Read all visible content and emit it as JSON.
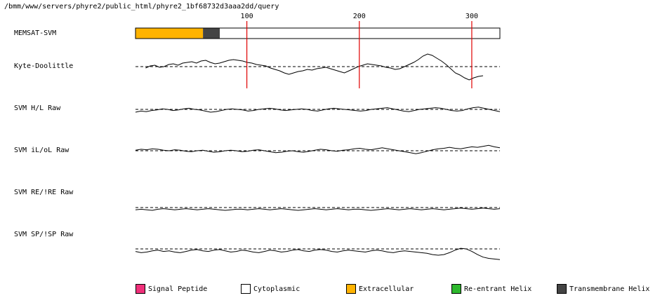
{
  "path_title": "/bmm/www/servers/phyre2/public_html/phyre2_1bf68732d3aaa2dd/query",
  "chart_data": {
    "type": "line",
    "sequence_length": 325,
    "ruler_ticks": [
      100,
      200,
      300
    ],
    "ruler_tick_labels": [
      "100",
      "200",
      "300"
    ],
    "memsat_track": {
      "label": "MEMSAT-SVM",
      "segments": [
        {
          "type": "Extracellular",
          "start": 1,
          "end": 60
        },
        {
          "type": "Transmembrane Helix",
          "start": 61,
          "end": 75
        },
        {
          "type": "Cytoplasmic",
          "start": 76,
          "end": 325
        }
      ]
    },
    "series": [
      {
        "name": "Kyte-Doolittle",
        "values": [
          -0.2,
          0.1,
          0.2,
          -0.1,
          0.0,
          0.3,
          0.4,
          0.2,
          0.5,
          0.6,
          0.7,
          0.5,
          0.8,
          0.9,
          0.6,
          0.4,
          0.5,
          0.7,
          0.9,
          1.0,
          0.9,
          0.8,
          0.6,
          0.5,
          0.3,
          0.2,
          0.1,
          -0.2,
          -0.4,
          -0.6,
          -0.9,
          -1.1,
          -0.9,
          -0.7,
          -0.6,
          -0.4,
          -0.5,
          -0.3,
          -0.2,
          -0.1,
          -0.3,
          -0.5,
          -0.7,
          -0.9,
          -0.6,
          -0.3,
          0.0,
          0.2,
          0.4,
          0.3,
          0.2,
          0.1,
          -0.1,
          -0.2,
          -0.4,
          -0.3,
          0.0,
          0.3,
          0.6,
          1.0,
          1.5,
          1.8,
          1.6,
          1.2,
          0.8,
          0.3,
          -0.3,
          -0.9,
          -1.2,
          -1.6,
          -1.9,
          -1.6,
          -1.4,
          -1.3
        ]
      },
      {
        "name": "SVM H/L Raw",
        "values": [
          -0.5,
          -0.3,
          -0.4,
          -0.2,
          -0.1,
          0.1,
          0.0,
          -0.2,
          -0.1,
          0.1,
          0.2,
          0.0,
          -0.1,
          -0.3,
          -0.5,
          -0.4,
          -0.2,
          0.0,
          0.1,
          0.0,
          -0.1,
          -0.3,
          -0.2,
          0.0,
          0.1,
          0.2,
          0.1,
          -0.1,
          -0.2,
          -0.1,
          0.0,
          0.1,
          0.0,
          -0.2,
          -0.3,
          -0.1,
          0.1,
          0.2,
          0.1,
          0.0,
          -0.1,
          -0.2,
          -0.3,
          -0.2,
          0.0,
          0.1,
          0.2,
          0.3,
          0.1,
          -0.1,
          -0.3,
          -0.4,
          -0.2,
          0.0,
          0.1,
          0.2,
          0.3,
          0.2,
          0.0,
          -0.2,
          -0.3,
          -0.2,
          0.1,
          0.3,
          0.4,
          0.2,
          0.0,
          -0.2,
          -0.4
        ]
      },
      {
        "name": "SVM iL/oL Raw",
        "values": [
          0.1,
          0.3,
          0.2,
          0.4,
          0.3,
          0.1,
          0.0,
          0.2,
          0.1,
          -0.1,
          -0.2,
          0.0,
          0.1,
          -0.1,
          -0.3,
          -0.2,
          0.0,
          0.1,
          0.0,
          -0.2,
          -0.1,
          0.1,
          0.2,
          0.0,
          -0.2,
          -0.4,
          -0.3,
          -0.1,
          0.0,
          -0.2,
          -0.3,
          -0.1,
          0.1,
          0.3,
          0.2,
          0.0,
          -0.1,
          0.1,
          0.2,
          0.4,
          0.5,
          0.3,
          0.2,
          0.4,
          0.6,
          0.4,
          0.2,
          0.0,
          -0.2,
          -0.4,
          -0.6,
          -0.4,
          -0.1,
          0.2,
          0.4,
          0.5,
          0.7,
          0.5,
          0.4,
          0.6,
          0.8,
          0.7,
          0.9,
          1.1,
          0.8,
          0.6
        ]
      },
      {
        "name": "SVM RE/!RE Raw",
        "values": [
          -0.4,
          -0.3,
          -0.4,
          -0.5,
          -0.3,
          -0.2,
          -0.3,
          -0.4,
          -0.3,
          -0.2,
          -0.3,
          -0.4,
          -0.3,
          -0.2,
          -0.3,
          -0.4,
          -0.5,
          -0.4,
          -0.3,
          -0.3,
          -0.4,
          -0.3,
          -0.2,
          -0.3,
          -0.4,
          -0.3,
          -0.2,
          -0.3,
          -0.4,
          -0.5,
          -0.4,
          -0.3,
          -0.2,
          -0.3,
          -0.4,
          -0.3,
          -0.2,
          -0.3,
          -0.4,
          -0.3,
          -0.3,
          -0.4,
          -0.5,
          -0.4,
          -0.3,
          -0.2,
          -0.3,
          -0.4,
          -0.3,
          -0.2,
          -0.3,
          -0.4,
          -0.3,
          -0.2,
          -0.3,
          -0.4,
          -0.3,
          -0.2,
          -0.1,
          -0.2,
          -0.3,
          -0.2,
          -0.1,
          -0.2,
          -0.3,
          -0.2
        ]
      },
      {
        "name": "SVM SP/!SP Raw",
        "values": [
          -0.4,
          -0.6,
          -0.5,
          -0.3,
          -0.2,
          -0.4,
          -0.3,
          -0.5,
          -0.6,
          -0.4,
          -0.2,
          -0.1,
          -0.3,
          -0.4,
          -0.2,
          -0.1,
          -0.3,
          -0.5,
          -0.4,
          -0.2,
          -0.3,
          -0.5,
          -0.6,
          -0.4,
          -0.2,
          -0.3,
          -0.5,
          -0.4,
          -0.2,
          -0.1,
          -0.3,
          -0.4,
          -0.2,
          -0.1,
          -0.2,
          -0.4,
          -0.5,
          -0.3,
          -0.2,
          -0.3,
          -0.4,
          -0.5,
          -0.3,
          -0.2,
          -0.3,
          -0.5,
          -0.6,
          -0.4,
          -0.3,
          -0.4,
          -0.5,
          -0.6,
          -0.7,
          -0.9,
          -1.0,
          -0.9,
          -0.6,
          -0.2,
          0.1,
          0.0,
          -0.4,
          -0.9,
          -1.3,
          -1.5,
          -1.6,
          -1.7
        ]
      }
    ],
    "legend": [
      {
        "label": "Signal Peptide",
        "color": "#f0307a"
      },
      {
        "label": "Cytoplasmic",
        "color": "#ffffff"
      },
      {
        "label": "Extracellular",
        "color": "#ffb300"
      },
      {
        "label": "Re-entrant Helix",
        "color": "#2db82d"
      },
      {
        "label": "Transmembrane Helix",
        "color": "#444444"
      }
    ]
  }
}
